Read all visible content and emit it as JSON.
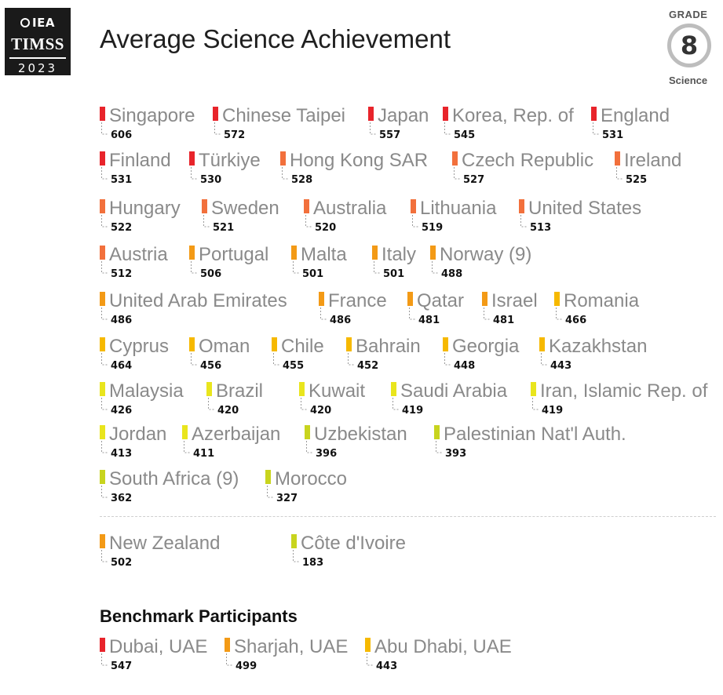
{
  "logo": {
    "org": "IEA",
    "study": "TIMSS",
    "year": "2023"
  },
  "title": "Average Science Achievement",
  "badge": {
    "grade_label": "GRADE",
    "grade": "8",
    "subject": "Science"
  },
  "benchmark_heading": "Benchmark Participants",
  "chart_data": {
    "type": "table",
    "title": "Average Science Achievement",
    "colors": {
      "high": "#e8242b",
      "upper": "#f2703c",
      "mid": "#f39a16",
      "lower": "#f6b900",
      "low": "#e9e51d",
      "lowest": "#c8d41e"
    },
    "rows": [
      {
        "items": [
          {
            "name": "Singapore",
            "value": "606",
            "color": "#e8242b"
          },
          {
            "name": "Chinese Taipei",
            "value": "572",
            "color": "#e8242b"
          },
          {
            "name": "Japan",
            "value": "557",
            "color": "#e8242b"
          },
          {
            "name": "Korea, Rep. of",
            "value": "545",
            "color": "#e8242b"
          },
          {
            "name": "England",
            "value": "531",
            "color": "#e8242b"
          }
        ]
      },
      {
        "items": [
          {
            "name": "Finland",
            "value": "531",
            "color": "#e8242b"
          },
          {
            "name": "Türkiye",
            "value": "530",
            "color": "#e8242b"
          },
          {
            "name": "Hong Kong SAR",
            "value": "528",
            "color": "#f2703c"
          },
          {
            "name": "Czech Republic",
            "value": "527",
            "color": "#f2703c"
          },
          {
            "name": "Ireland",
            "value": "525",
            "color": "#f2703c"
          }
        ]
      },
      {
        "items": [
          {
            "name": "Hungary",
            "value": "522",
            "color": "#f2703c"
          },
          {
            "name": "Sweden",
            "value": "521",
            "color": "#f2703c"
          },
          {
            "name": "Australia",
            "value": "520",
            "color": "#f2703c"
          },
          {
            "name": "Lithuania",
            "value": "519",
            "color": "#f2703c"
          },
          {
            "name": "United States",
            "value": "513",
            "color": "#f2703c"
          }
        ]
      },
      {
        "items": [
          {
            "name": "Austria",
            "value": "512",
            "color": "#f2703c"
          },
          {
            "name": "Portugal",
            "value": "506",
            "color": "#f39a16"
          },
          {
            "name": "Malta",
            "value": "501",
            "color": "#f39a16"
          },
          {
            "name": "Italy",
            "value": "501",
            "color": "#f39a16"
          },
          {
            "name": "Norway (9)",
            "value": "488",
            "color": "#f39a16"
          }
        ]
      },
      {
        "items": [
          {
            "name": "United Arab Emirates",
            "value": "486",
            "color": "#f39a16"
          },
          {
            "name": "France",
            "value": "486",
            "color": "#f39a16"
          },
          {
            "name": "Qatar",
            "value": "481",
            "color": "#f39a16"
          },
          {
            "name": "Israel",
            "value": "481",
            "color": "#f39a16"
          },
          {
            "name": "Romania",
            "value": "466",
            "color": "#f6b900"
          }
        ]
      },
      {
        "items": [
          {
            "name": "Cyprus",
            "value": "464",
            "color": "#f6b900"
          },
          {
            "name": "Oman",
            "value": "456",
            "color": "#f6b900"
          },
          {
            "name": "Chile",
            "value": "455",
            "color": "#f6b900"
          },
          {
            "name": "Bahrain",
            "value": "452",
            "color": "#f6b900"
          },
          {
            "name": "Georgia",
            "value": "448",
            "color": "#f6b900"
          },
          {
            "name": "Kazakhstan",
            "value": "443",
            "color": "#f6b900"
          }
        ]
      },
      {
        "items": [
          {
            "name": "Malaysia",
            "value": "426",
            "color": "#e9e51d"
          },
          {
            "name": "Brazil",
            "value": "420",
            "color": "#e9e51d"
          },
          {
            "name": "Kuwait",
            "value": "420",
            "color": "#e9e51d"
          },
          {
            "name": "Saudi Arabia",
            "value": "419",
            "color": "#e9e51d"
          },
          {
            "name": "Iran, Islamic Rep. of",
            "value": "419",
            "color": "#e9e51d"
          }
        ]
      },
      {
        "items": [
          {
            "name": "Jordan",
            "value": "413",
            "color": "#e9e51d"
          },
          {
            "name": "Azerbaijan",
            "value": "411",
            "color": "#e9e51d"
          },
          {
            "name": "Uzbekistan",
            "value": "396",
            "color": "#c8d41e"
          },
          {
            "name": "Palestinian Nat'l Auth.",
            "value": "393",
            "color": "#c8d41e"
          }
        ]
      },
      {
        "items": [
          {
            "name": "South Africa (9)",
            "value": "362",
            "color": "#c8d41e"
          },
          {
            "name": "Morocco",
            "value": "327",
            "color": "#c8d41e"
          }
        ]
      },
      {
        "items": [
          {
            "name": "New Zealand",
            "value": "502",
            "color": "#f39a16"
          },
          {
            "name": "Côte d'Ivoire",
            "value": "183",
            "color": "#c8d41e"
          }
        ]
      },
      {
        "items": [
          {
            "name": "Dubai, UAE",
            "value": "547",
            "color": "#e8242b"
          },
          {
            "name": "Sharjah, UAE",
            "value": "499",
            "color": "#f39a16"
          },
          {
            "name": "Abu Dhabi, UAE",
            "value": "443",
            "color": "#f6b900"
          }
        ]
      }
    ]
  }
}
